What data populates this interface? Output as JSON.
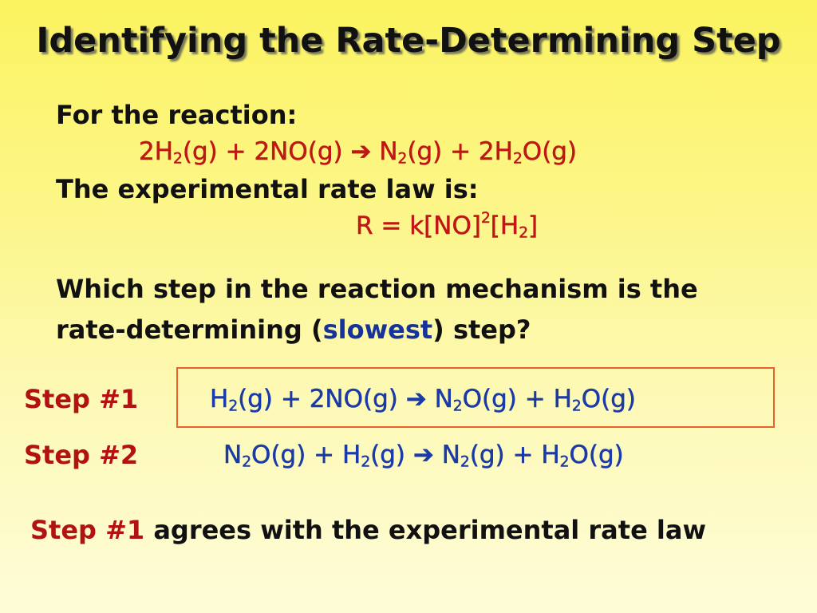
{
  "title": "Identifying the Rate-Determining Step",
  "intro": {
    "for_reaction": "For the reaction:",
    "reaction": {
      "c1": "2H",
      "s1": "2",
      "p1": "(g) + 2NO(g) ",
      "arrow": "➔",
      "p2": " N",
      "s2": "2",
      "p3": "(g) + 2H",
      "s3": "2",
      "p4": "O(g)"
    },
    "rate_law_label": "The experimental rate law is:",
    "rate_law": {
      "p1": "R = k[NO]",
      "sup1": "2",
      "p2": "[H",
      "s1": "2",
      "p3": "]"
    }
  },
  "question": {
    "line1": "Which step in the reaction mechanism is the",
    "line2_pre": "rate-determining (",
    "line2_emph": "slowest",
    "line2_post": ") step?"
  },
  "steps": [
    {
      "label": "Step #1",
      "eq": {
        "p1": "H",
        "s1": "2",
        "p2": "(g) + 2NO(g) ",
        "arrow": "➔",
        "p3": " N",
        "s2": "2",
        "p4": "O(g) + H",
        "s3": "2",
        "p5": "O(g)"
      }
    },
    {
      "label": "Step #2",
      "eq": {
        "p1": "N",
        "s1": "2",
        "p2": "O(g) + H",
        "s2": "2",
        "p3": "(g) ",
        "arrow": "➔",
        "p4": " N",
        "s3": "2",
        "p5": "(g) + H",
        "s4": "2",
        "p6": "O(g)"
      }
    }
  ],
  "conclusion": {
    "label": "Step #1",
    "text": " agrees with the experimental rate law"
  },
  "colors": {
    "title_text": "#111111",
    "step_label": "#b31212",
    "equation_red": "#c01616",
    "equation_blue": "#1a3aa8",
    "highlight_box": "#e8602c"
  }
}
